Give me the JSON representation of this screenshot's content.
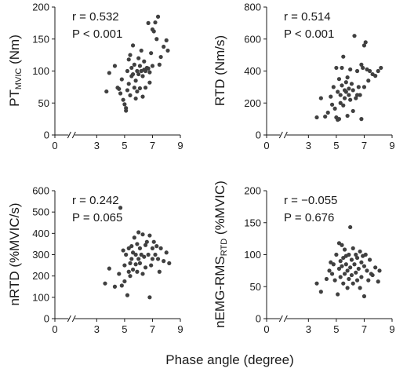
{
  "figure": {
    "shared_xlabel": "Phase angle (degree)"
  },
  "chart_data": [
    {
      "type": "scatter",
      "ylabel": {
        "main": "PT",
        "sub": "MVIC",
        "unit": " (Nm)"
      },
      "r_text": "r = 0.532",
      "p_text": "P < 0.001",
      "xlim": [
        0,
        9
      ],
      "ylim": [
        0,
        200
      ],
      "xticks": [
        "0",
        "3",
        "5",
        "7",
        "9"
      ],
      "yticks": [
        "0",
        "50",
        "100",
        "150",
        "200"
      ],
      "x": [
        3.7,
        3.9,
        4.3,
        4.5,
        4.6,
        4.7,
        4.8,
        4.9,
        5.0,
        5.1,
        5.1,
        5.2,
        5.2,
        5.3,
        5.3,
        5.4,
        5.4,
        5.5,
        5.5,
        5.6,
        5.6,
        5.7,
        5.7,
        5.8,
        5.8,
        5.9,
        5.9,
        6.0,
        6.0,
        6.1,
        6.1,
        6.2,
        6.2,
        6.3,
        6.3,
        6.4,
        6.4,
        6.5,
        6.5,
        6.6,
        6.7,
        6.7,
        6.8,
        6.8,
        6.9,
        7.0,
        7.0,
        7.1,
        7.2,
        7.3,
        7.4,
        7.5,
        7.6,
        7.8,
        8.0,
        8.1
      ],
      "y": [
        68,
        97,
        108,
        74,
        72,
        65,
        87,
        55,
        48,
        38,
        42,
        70,
        100,
        80,
        118,
        62,
        125,
        92,
        105,
        140,
        95,
        74,
        110,
        57,
        85,
        100,
        68,
        120,
        95,
        108,
        73,
        132,
        100,
        60,
        92,
        115,
        102,
        74,
        100,
        105,
        175,
        104,
        98,
        82,
        128,
        165,
        108,
        162,
        176,
        150,
        185,
        110,
        122,
        138,
        148,
        132
      ]
    },
    {
      "type": "scatter",
      "ylabel": {
        "main": "RTD (Nm/s)",
        "sub": "",
        "unit": ""
      },
      "r_text": "r = 0.514",
      "p_text": "P < 0.001",
      "xlim": [
        0,
        9
      ],
      "ylim": [
        0,
        800
      ],
      "xticks": [
        "0",
        "3",
        "5",
        "7",
        "9"
      ],
      "yticks": [
        "0",
        "200",
        "400",
        "600",
        "800"
      ],
      "x": [
        3.6,
        3.9,
        4.2,
        4.4,
        4.6,
        4.7,
        4.8,
        4.9,
        5.0,
        5.0,
        5.1,
        5.1,
        5.2,
        5.2,
        5.3,
        5.3,
        5.4,
        5.4,
        5.5,
        5.5,
        5.6,
        5.6,
        5.7,
        5.7,
        5.8,
        5.8,
        5.9,
        5.9,
        6.0,
        6.0,
        6.1,
        6.2,
        6.2,
        6.3,
        6.4,
        6.5,
        6.5,
        6.6,
        6.7,
        6.8,
        6.8,
        6.9,
        7.0,
        7.0,
        7.1,
        7.2,
        7.3,
        7.4,
        7.6,
        7.8,
        8.0,
        8.2
      ],
      "y": [
        110,
        230,
        115,
        140,
        240,
        190,
        300,
        165,
        110,
        420,
        95,
        270,
        350,
        100,
        200,
        250,
        310,
        420,
        490,
        185,
        280,
        230,
        330,
        270,
        120,
        360,
        290,
        250,
        220,
        410,
        320,
        150,
        280,
        620,
        230,
        250,
        400,
        300,
        250,
        440,
        100,
        420,
        560,
        300,
        580,
        410,
        340,
        400,
        380,
        370,
        400,
        420
      ]
    },
    {
      "type": "scatter",
      "ylabel": {
        "main": "nRTD (%MVIC/s)",
        "sub": "",
        "unit": ""
      },
      "r_text": "r = 0.242",
      "p_text": "P = 0.065",
      "xlim": [
        0,
        9
      ],
      "ylim": [
        0,
        600
      ],
      "xticks": [
        "0",
        "3",
        "5",
        "7",
        "9"
      ],
      "yticks": [
        "0",
        "100",
        "200",
        "300",
        "400",
        "500",
        "600"
      ],
      "x": [
        3.6,
        3.9,
        4.3,
        4.6,
        4.7,
        4.8,
        4.9,
        5.0,
        5.0,
        5.1,
        5.2,
        5.3,
        5.3,
        5.4,
        5.4,
        5.5,
        5.5,
        5.6,
        5.6,
        5.7,
        5.8,
        5.8,
        5.9,
        5.9,
        6.0,
        6.0,
        6.1,
        6.1,
        6.2,
        6.3,
        6.3,
        6.4,
        6.5,
        6.5,
        6.6,
        6.7,
        6.8,
        6.8,
        6.9,
        7.0,
        7.0,
        7.1,
        7.2,
        7.3,
        7.4,
        7.5,
        7.6,
        7.8,
        8.0,
        8.2
      ],
      "y": [
        165,
        235,
        150,
        210,
        520,
        155,
        320,
        175,
        250,
        300,
        110,
        220,
        330,
        260,
        200,
        340,
        280,
        310,
        230,
        380,
        300,
        255,
        350,
        220,
        405,
        280,
        330,
        260,
        300,
        395,
        210,
        290,
        345,
        240,
        360,
        300,
        100,
        390,
        250,
        330,
        280,
        360,
        300,
        340,
        280,
        220,
        330,
        270,
        310,
        260
      ]
    },
    {
      "type": "scatter",
      "ylabel": {
        "main": "nEMG-RMS",
        "sub": "RTD",
        "unit": " (%MVIC)"
      },
      "r_text": "r = −0.055",
      "p_text": "P = 0.676",
      "xlim": [
        0,
        9
      ],
      "ylim": [
        0,
        200
      ],
      "xticks": [
        "0",
        "3",
        "5",
        "7",
        "9"
      ],
      "yticks": [
        "0",
        "50",
        "100",
        "150",
        "200"
      ],
      "x": [
        3.6,
        3.9,
        4.3,
        4.5,
        4.6,
        4.7,
        4.8,
        4.9,
        5.0,
        5.1,
        5.2,
        5.2,
        5.3,
        5.3,
        5.4,
        5.4,
        5.5,
        5.5,
        5.6,
        5.6,
        5.7,
        5.7,
        5.8,
        5.8,
        5.9,
        5.9,
        6.0,
        6.0,
        6.1,
        6.1,
        6.2,
        6.2,
        6.3,
        6.4,
        6.4,
        6.5,
        6.5,
        6.6,
        6.7,
        6.7,
        6.8,
        6.8,
        6.9,
        7.0,
        7.0,
        7.1,
        7.2,
        7.3,
        7.4,
        7.5,
        7.6,
        7.8,
        8.0,
        8.1
      ],
      "y": [
        55,
        42,
        62,
        75,
        88,
        70,
        85,
        60,
        100,
        38,
        78,
        118,
        65,
        90,
        82,
        115,
        95,
        55,
        70,
        108,
        85,
        98,
        48,
        75,
        100,
        62,
        80,
        143,
        92,
        68,
        110,
        55,
        85,
        72,
        100,
        60,
        95,
        78,
        48,
        105,
        88,
        65,
        98,
        35,
        82,
        100,
        75,
        60,
        92,
        70,
        68,
        80,
        58,
        75
      ]
    }
  ]
}
